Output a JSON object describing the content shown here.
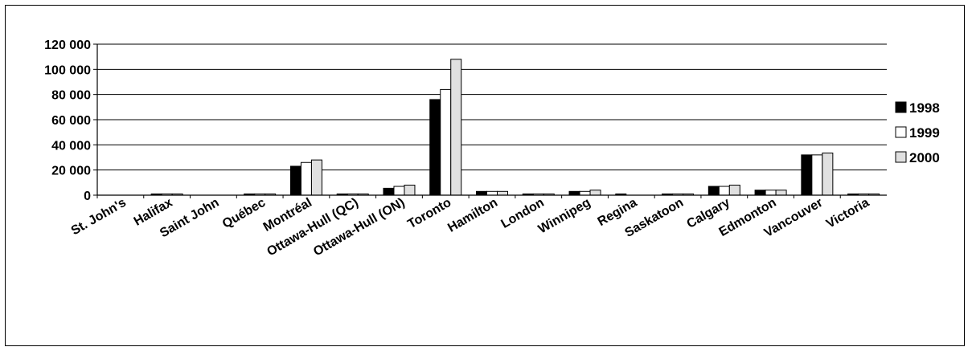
{
  "chart_data": {
    "type": "bar",
    "title": "",
    "xlabel": "",
    "ylabel": "",
    "ylim": [
      0,
      120000
    ],
    "ytick_values": [
      0,
      20000,
      40000,
      60000,
      80000,
      100000,
      120000
    ],
    "ytick_labels": [
      "0",
      "20 000",
      "40 000",
      "60 000",
      "80 000",
      "100 000",
      "120 000"
    ],
    "grid": true,
    "legend_position": "right",
    "categories": [
      "St. John's",
      "Halifax",
      "Saint John",
      "Québec",
      "Montréal",
      "Ottawa-Hull (QC)",
      "Ottawa-Hull (ON)",
      "Toronto",
      "Hamilton",
      "London",
      "Winnipeg",
      "Regina",
      "Saskatoon",
      "Calgary",
      "Edmonton",
      "Vancouver",
      "Victoria"
    ],
    "series": [
      {
        "name": "1998",
        "color": "#000000",
        "values": [
          0,
          1000,
          0,
          1000,
          23000,
          1000,
          5500,
          76000,
          3000,
          1000,
          3000,
          1000,
          1000,
          7000,
          4000,
          32000,
          1000
        ]
      },
      {
        "name": "1999",
        "color": "#ffffff",
        "values": [
          0,
          1000,
          0,
          1000,
          26000,
          1000,
          7000,
          84000,
          3000,
          1000,
          3000,
          0,
          1000,
          7000,
          4000,
          32000,
          1000
        ]
      },
      {
        "name": "2000",
        "color": "#e0e0e0",
        "values": [
          0,
          1000,
          0,
          1000,
          28000,
          1000,
          8000,
          108000,
          3000,
          1000,
          4000,
          0,
          1000,
          8000,
          4000,
          33500,
          1000
        ]
      }
    ]
  }
}
